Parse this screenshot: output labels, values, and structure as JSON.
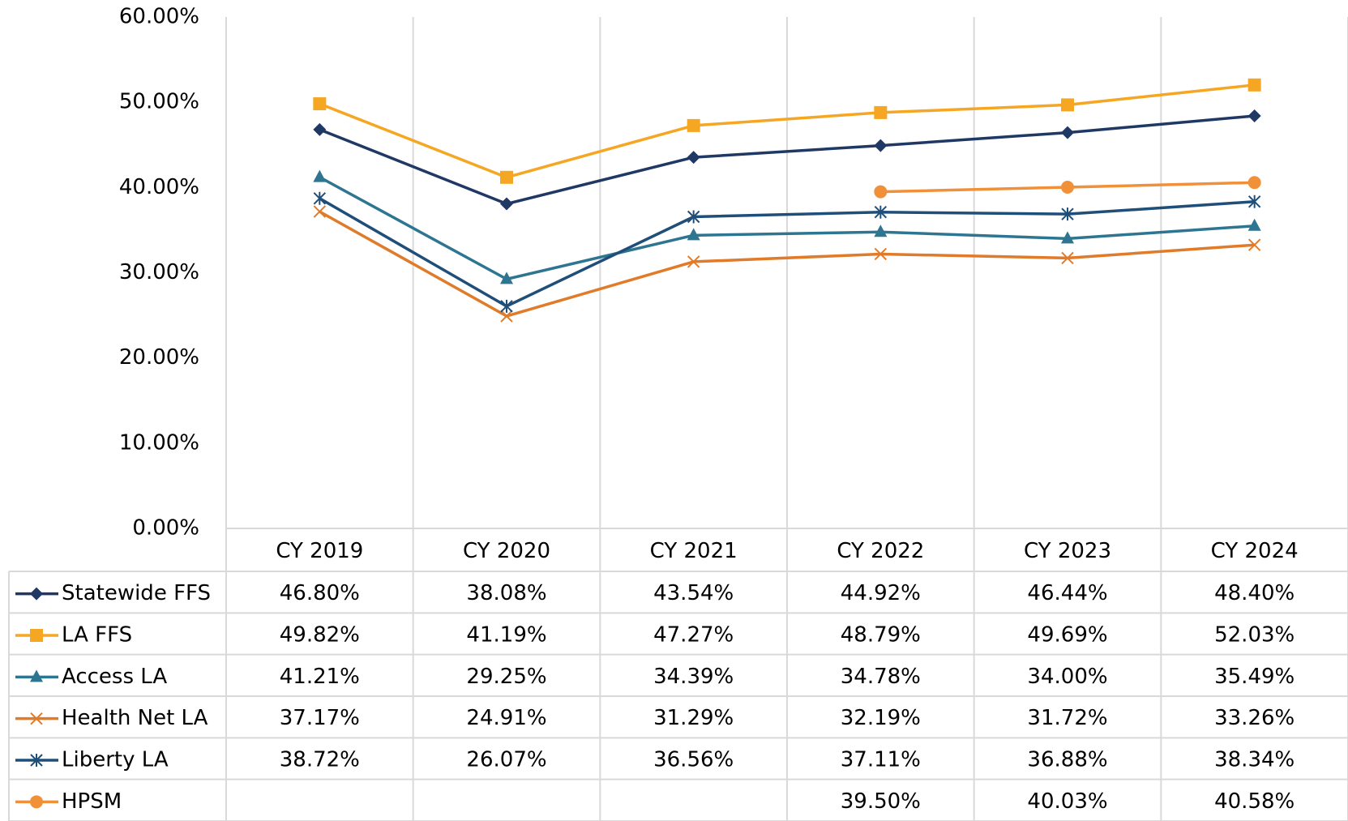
{
  "chart_data": {
    "type": "line",
    "categories": [
      "CY 2019",
      "CY 2020",
      "CY 2021",
      "CY 2022",
      "CY 2023",
      "CY 2024"
    ],
    "ylim": [
      0,
      60
    ],
    "yticks": [
      {
        "value": 0,
        "label": "0.00%"
      },
      {
        "value": 10,
        "label": "10.00%"
      },
      {
        "value": 20,
        "label": "20.00%"
      },
      {
        "value": 30,
        "label": "30.00%"
      },
      {
        "value": 40,
        "label": "40.00%"
      },
      {
        "value": 50,
        "label": "50.00%"
      },
      {
        "value": 60,
        "label": "60.00%"
      }
    ],
    "grid": true,
    "series": [
      {
        "name": "Statewide FFS",
        "color": "#1f3864",
        "marker": "diamond",
        "values": [
          46.8,
          38.08,
          43.54,
          44.92,
          46.44,
          48.4
        ],
        "value_labels": [
          "46.80%",
          "38.08%",
          "43.54%",
          "44.92%",
          "46.44%",
          "48.40%"
        ]
      },
      {
        "name": "LA FFS",
        "color": "#f5a623",
        "marker": "square",
        "values": [
          49.82,
          41.19,
          47.27,
          48.79,
          49.69,
          52.03
        ],
        "value_labels": [
          "49.82%",
          "41.19%",
          "47.27%",
          "48.79%",
          "49.69%",
          "52.03%"
        ]
      },
      {
        "name": "Access LA",
        "color": "#2e7591",
        "marker": "triangle",
        "values": [
          41.21,
          29.25,
          34.39,
          34.78,
          34.0,
          35.49
        ],
        "value_labels": [
          "41.21%",
          "29.25%",
          "34.39%",
          "34.78%",
          "34.00%",
          "35.49%"
        ]
      },
      {
        "name": "Health Net LA",
        "color": "#e07b2a",
        "marker": "x",
        "values": [
          37.17,
          24.91,
          31.29,
          32.19,
          31.72,
          33.26
        ],
        "value_labels": [
          "37.17%",
          "24.91%",
          "31.29%",
          "32.19%",
          "31.72%",
          "33.26%"
        ]
      },
      {
        "name": "Liberty LA",
        "color": "#1f4e79",
        "marker": "asterisk",
        "values": [
          38.72,
          26.07,
          36.56,
          37.11,
          36.88,
          38.34
        ],
        "value_labels": [
          "38.72%",
          "26.07%",
          "36.56%",
          "37.11%",
          "36.88%",
          "38.34%"
        ]
      },
      {
        "name": "HPSM",
        "color": "#f0913a",
        "marker": "circle",
        "values": [
          null,
          null,
          null,
          39.5,
          40.03,
          40.58
        ],
        "value_labels": [
          null,
          null,
          null,
          "39.50%",
          "40.03%",
          "40.58%"
        ]
      }
    ]
  }
}
